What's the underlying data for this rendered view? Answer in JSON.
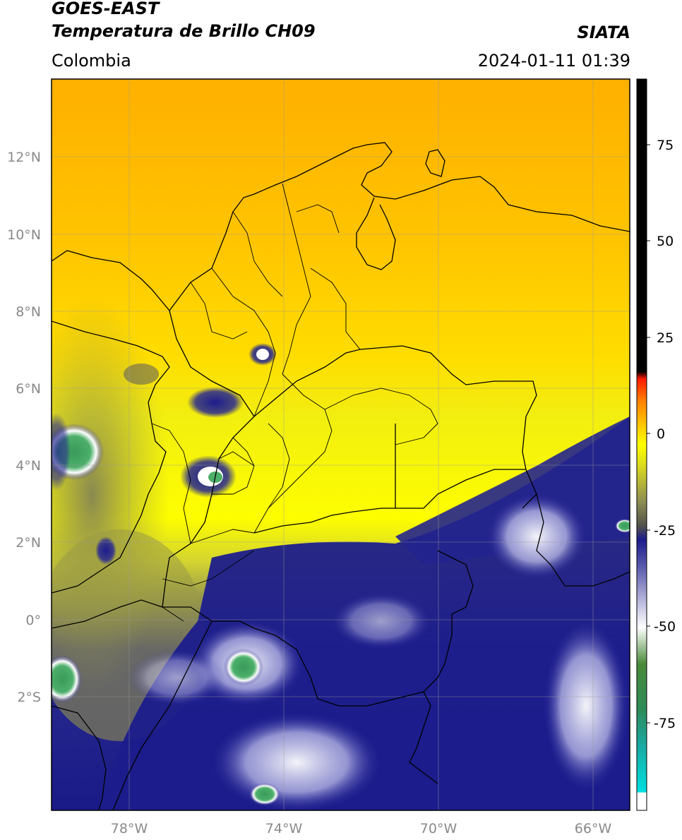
{
  "header": {
    "title_line1": "GOES-EAST",
    "title_line2": "Temperatura de Brillo CH09",
    "region": "Colombia",
    "brand": "SIATA",
    "datetime": "2024-01-11 01:39"
  },
  "map": {
    "lon_ticks": [
      "78°W",
      "74°W",
      "70°W",
      "66°W"
    ],
    "lat_ticks": [
      "12°N",
      "10°N",
      "8°N",
      "6°N",
      "4°N",
      "2°N",
      "0°",
      "2°S"
    ],
    "extent": {
      "lon_min": -80,
      "lon_max": -65,
      "lat_min": -5,
      "lat_max": 14
    }
  },
  "colorbar": {
    "ticks": [
      "75",
      "50",
      "25",
      "0",
      "-25",
      "-50",
      "-75"
    ],
    "range": [
      -95,
      90
    ],
    "colors": [
      "#ffffff",
      "#00d8d8",
      "#2e8b57",
      "#ffffff",
      "#1c1c8c",
      "#6b6b5a",
      "#ffff00",
      "#ffa500",
      "#ff0000",
      "#000000"
    ]
  }
}
